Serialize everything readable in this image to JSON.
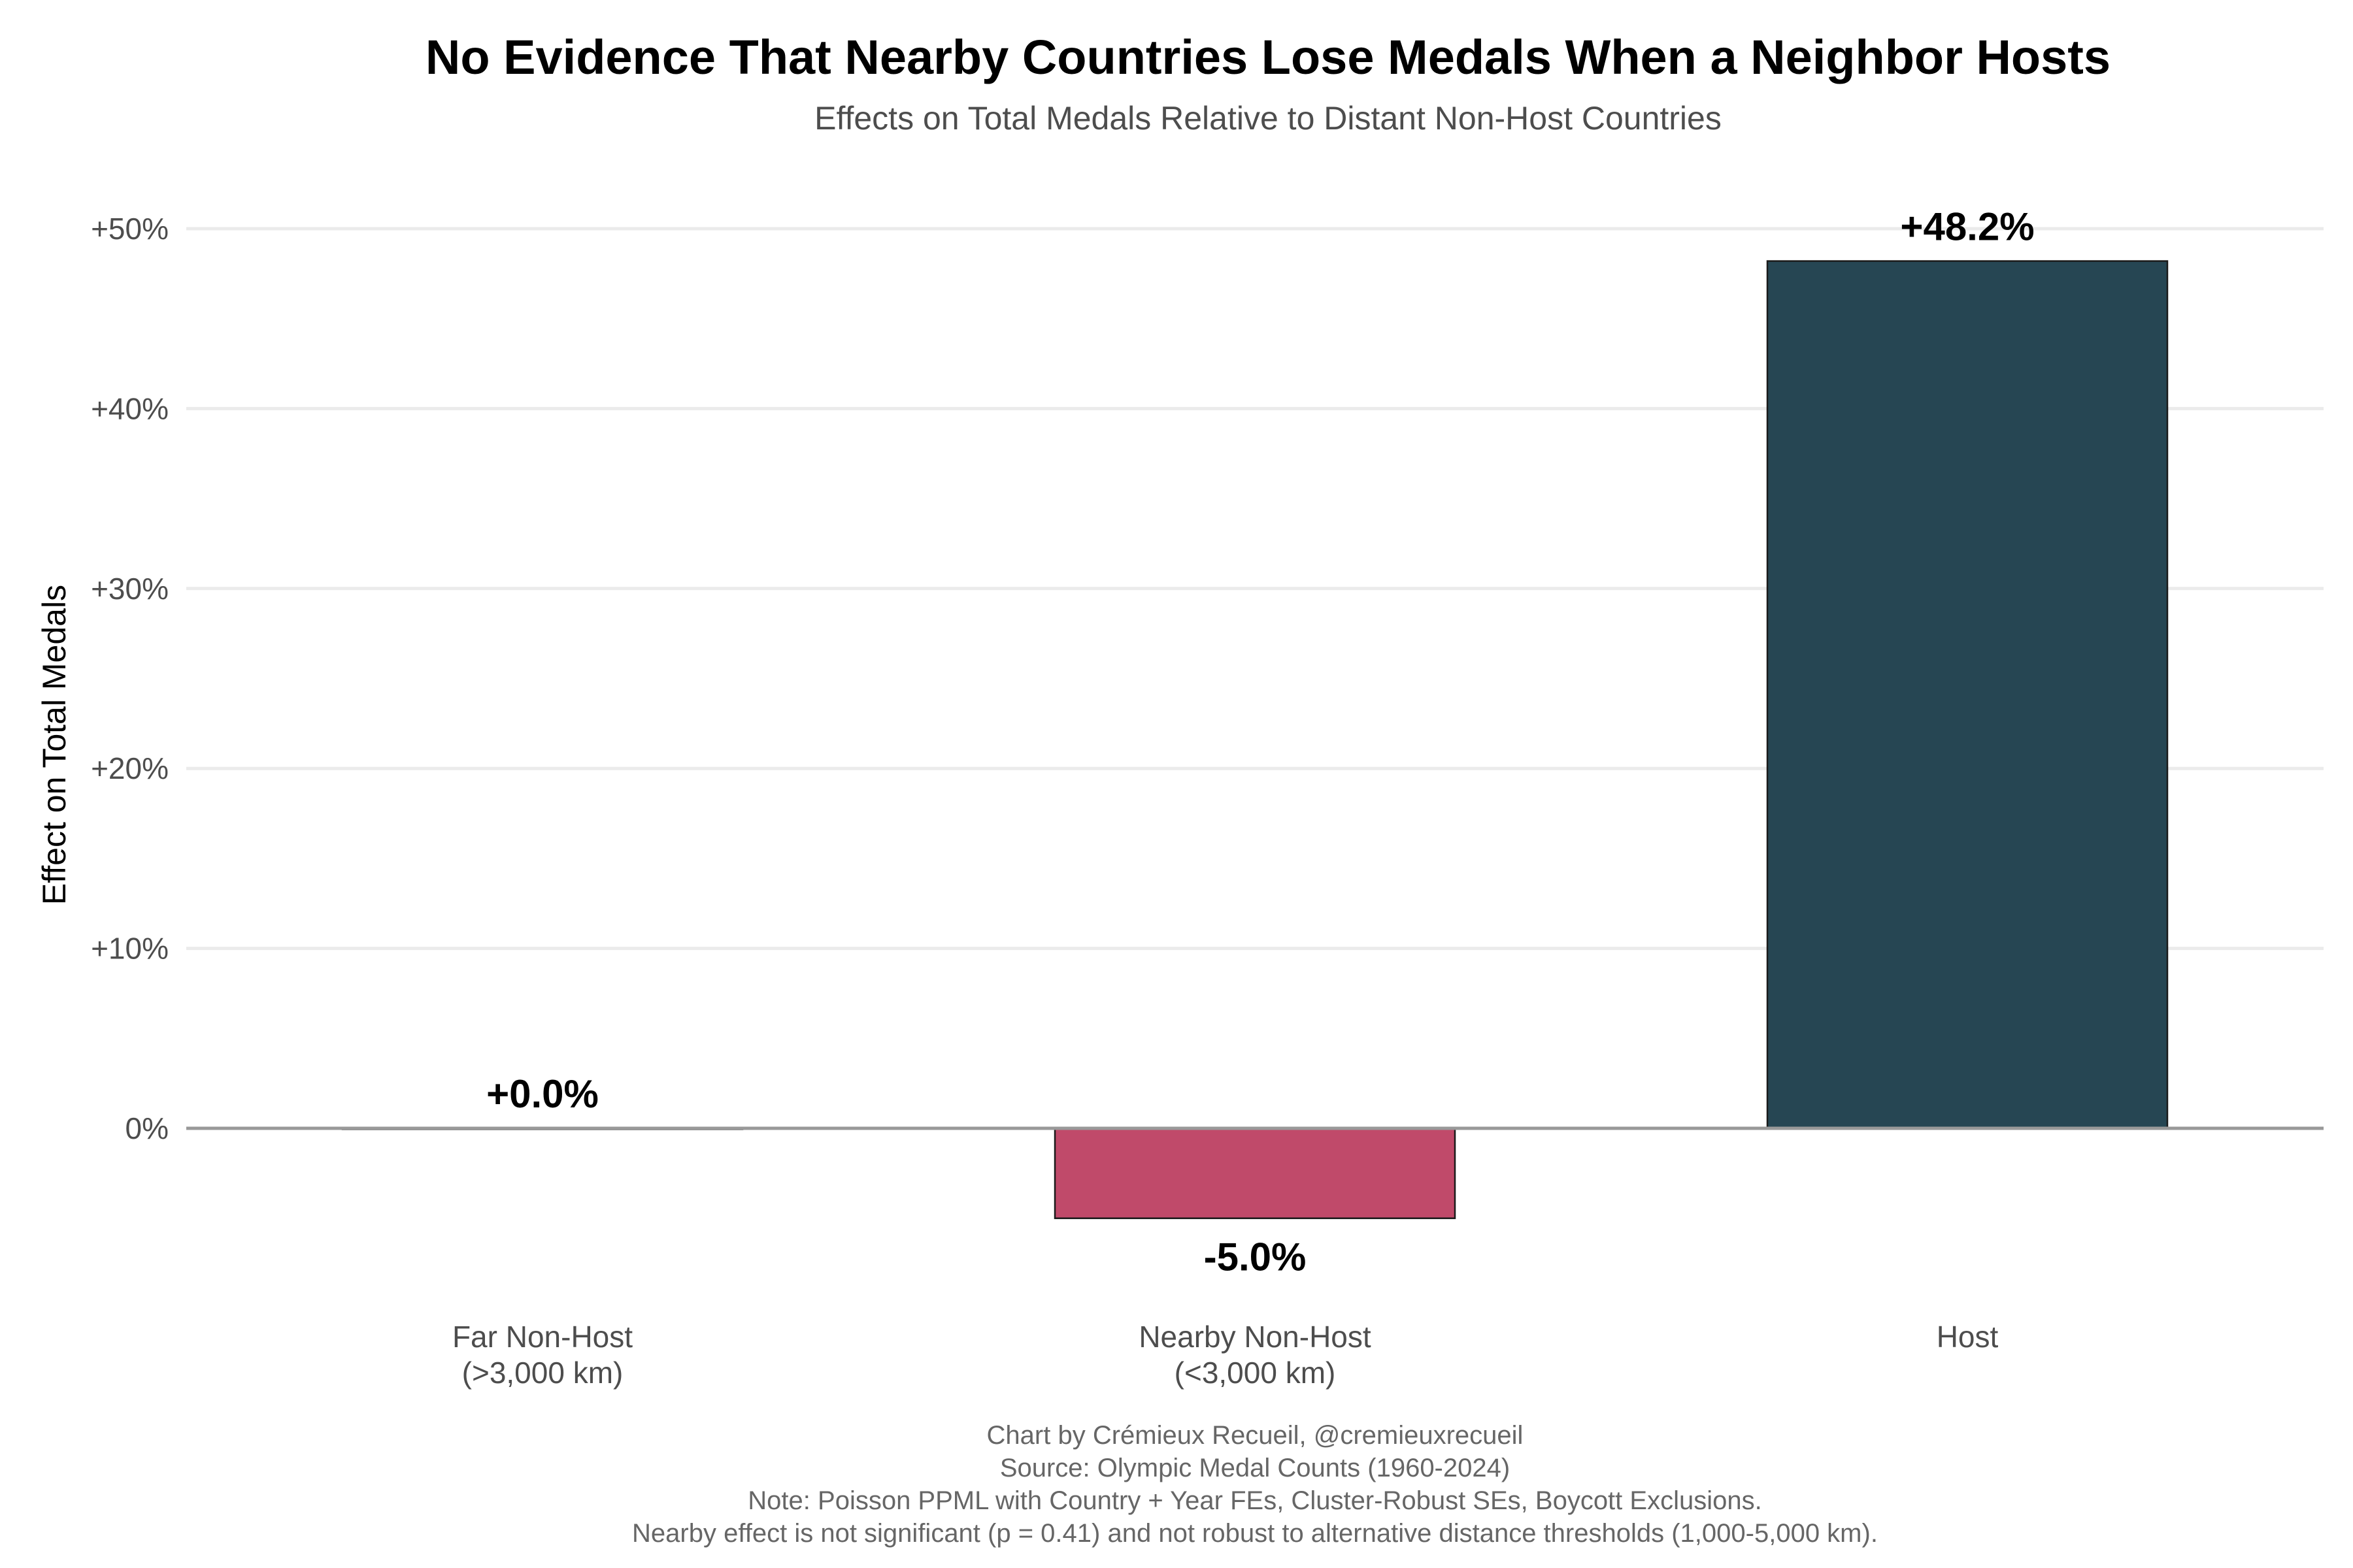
{
  "chart_data": {
    "type": "bar",
    "title": "No Evidence That Nearby Countries Lose Medals When a Neighbor Hosts",
    "subtitle": "Effects on Total Medals Relative to Distant Non-Host Countries",
    "xlabel": "",
    "ylabel": "Effect on Total Medals",
    "ylim": [
      -8,
      53
    ],
    "grid": true,
    "legend": "none",
    "y_ticks": [
      0,
      10,
      20,
      30,
      40,
      50
    ],
    "y_tick_labels": [
      "0%",
      "+10%",
      "+20%",
      "+30%",
      "+40%",
      "+50%"
    ],
    "categories": [
      [
        "Far Non-Host",
        "(>3,000 km)"
      ],
      [
        "Nearby Non-Host",
        "(<3,000 km)"
      ],
      [
        "Host"
      ]
    ],
    "values": [
      0.0,
      -5.0,
      48.2
    ],
    "value_labels": [
      "+0.0%",
      "-5.0%",
      "+48.2%"
    ],
    "colors": [
      "#2c3e50",
      "#c04a6a",
      "#264653"
    ],
    "caption": [
      "Chart by Crémieux Recueil, @cremieuxrecueil",
      "Source: Olympic Medal Counts (1960-2024)",
      "Note: Poisson PPML with Country + Year FEs, Cluster-Robust SEs, Boycott Exclusions.",
      "Nearby effect is not significant (p = 0.41) and not robust to alternative distance thresholds (1,000-5,000 km)."
    ]
  }
}
